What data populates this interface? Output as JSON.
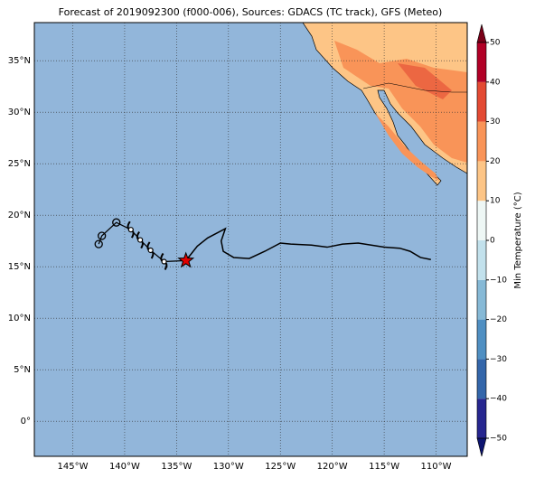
{
  "map": {
    "title": "Forecast of 2019092300 (f000-006), Sources: GDACS (TC track), GFS (Meteo)",
    "xlim": [
      -148.7,
      -107.0
    ],
    "ylim": [
      -3.4,
      38.7
    ],
    "xticks": [
      {
        "value": -145,
        "label": "145°W"
      },
      {
        "value": -140,
        "label": "140°W"
      },
      {
        "value": -135,
        "label": "135°W"
      },
      {
        "value": -130,
        "label": "130°W"
      },
      {
        "value": -125,
        "label": "125°W"
      },
      {
        "value": -120,
        "label": "120°W"
      },
      {
        "value": -115,
        "label": "115°W"
      },
      {
        "value": -110,
        "label": "110°W"
      }
    ],
    "yticks": [
      {
        "value": 0,
        "label": "0°"
      },
      {
        "value": 5,
        "label": "5°N"
      },
      {
        "value": 10,
        "label": "10°N"
      },
      {
        "value": 15,
        "label": "15°N"
      },
      {
        "value": 20,
        "label": "20°N"
      },
      {
        "value": 25,
        "label": "25°N"
      },
      {
        "value": 30,
        "label": "30°N"
      },
      {
        "value": 35,
        "label": "35°N"
      }
    ],
    "track": {
      "lon": [
        -110.5,
        -111.5,
        -112.5,
        -113.5,
        -115.0,
        -117.5,
        -119.0,
        -120.5,
        -122.0,
        -124.0,
        -125.0,
        -126.5,
        -128.0,
        -129.5,
        -130.5,
        -130.7,
        -130.3,
        -132.0,
        -133.0,
        -134.1
      ],
      "lat": [
        15.7,
        15.9,
        16.5,
        16.8,
        16.9,
        17.3,
        17.2,
        16.9,
        17.1,
        17.2,
        17.3,
        16.5,
        15.8,
        15.9,
        16.5,
        17.5,
        18.7,
        17.8,
        17.0,
        15.6
      ]
    },
    "forecast": {
      "lon": [
        -136.2,
        -137.5,
        -138.5,
        -139.4
      ],
      "lat": [
        15.5,
        16.6,
        17.6,
        18.6
      ]
    },
    "past": {
      "lon": [
        -140.8,
        -142.2,
        -142.5
      ],
      "lat": [
        19.3,
        18.0,
        17.2
      ]
    },
    "colorbar": {
      "label": "Min Temperature (°C)",
      "ticks": [
        {
          "value": -50,
          "label": "−50"
        },
        {
          "value": -40,
          "label": "−40"
        },
        {
          "value": -30,
          "label": "−30"
        },
        {
          "value": -20,
          "label": "−20"
        },
        {
          "value": -10,
          "label": "−10"
        },
        0,
        10,
        20,
        30,
        40,
        50
      ],
      "colors": [
        "#26268f",
        "#3366aa",
        "#4f8fc2",
        "#86b9d6",
        "#c2e1ec",
        "#eef7f5",
        "#fdc586",
        "#f99458",
        "#e34a33",
        "#b10026"
      ],
      "under": "#0d1470",
      "over": "#7a0018"
    }
  }
}
